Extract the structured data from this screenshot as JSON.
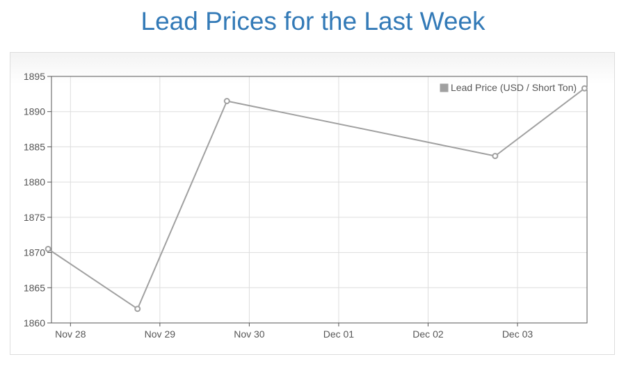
{
  "page": {
    "title": "Lead Prices for the Last Week"
  },
  "chart_data": {
    "type": "line",
    "title": "Lead Prices for the Last Week",
    "xlabel": "",
    "ylabel": "",
    "x_tick_labels": [
      "Nov 28",
      "Nov 29",
      "Nov 30",
      "Dec 01",
      "Dec 02",
      "Dec 03"
    ],
    "y_ticks": [
      1860,
      1865,
      1870,
      1875,
      1880,
      1885,
      1890,
      1895
    ],
    "ylim": [
      1860,
      1895
    ],
    "grid": true,
    "legend_position": "top-right",
    "colors": {
      "series": "#a0a0a0",
      "title": "#337ab7"
    },
    "series": [
      {
        "name": "Lead Price (USD / Short Ton)",
        "points": [
          {
            "x": "Nov 27 18:00",
            "y": 1870.5
          },
          {
            "x": "Nov 28 18:00",
            "y": 1862.0
          },
          {
            "x": "Nov 29 18:00",
            "y": 1891.5
          },
          {
            "x": "Dec 02 18:00",
            "y": 1883.7
          },
          {
            "x": "Dec 03 18:00",
            "y": 1893.3
          }
        ]
      }
    ]
  }
}
